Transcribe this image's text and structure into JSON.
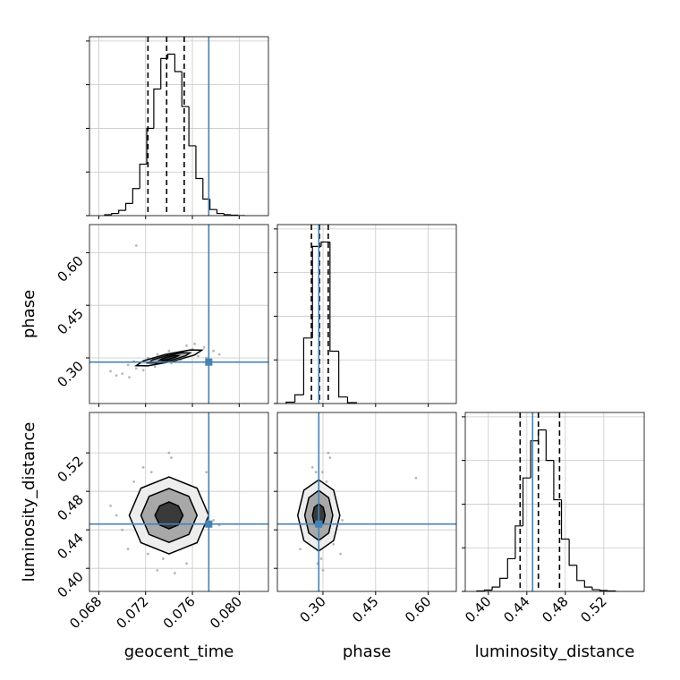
{
  "chart_data": {
    "type": "corner",
    "truth_color": "#4682b4",
    "grid": true,
    "parameters": [
      {
        "name": "geocent_time",
        "xlim": [
          0.0672,
          0.0825
        ],
        "xticks": [
          0.068,
          0.072,
          0.076,
          {
            "value": 0.08,
            "label": "0.080"
          }
        ],
        "truth": 0.0774,
        "quantiles": [
          0.0722,
          0.0738,
          0.0753
        ],
        "hist": {
          "bins": [
            0.0685,
            0.0691,
            0.0697,
            0.0703,
            0.0709,
            0.0715,
            0.0721,
            0.0727,
            0.0733,
            0.0739,
            0.0745,
            0.0751,
            0.0757,
            0.0763,
            0.0769,
            0.0775,
            0.0781,
            0.0787,
            0.0793,
            0.0799,
            0.0805
          ],
          "counts": [
            2,
            5,
            12,
            28,
            62,
            118,
            200,
            290,
            360,
            370,
            330,
            250,
            160,
            85,
            38,
            14,
            5,
            2,
            1,
            0
          ],
          "ylim": [
            0,
            410
          ],
          "yticks": [
            0,
            100,
            200,
            300,
            400
          ]
        }
      },
      {
        "name": "phase",
        "xlim": [
          0.17,
          0.68
        ],
        "ylim": [
          0.17,
          0.68
        ],
        "xticks": [
          {
            "value": 0.3,
            "label": "0.30"
          },
          0.45,
          {
            "value": 0.6,
            "label": "0.60"
          }
        ],
        "yticks": [
          {
            "value": 0.3,
            "label": "0.30"
          },
          0.45,
          {
            "value": 0.6,
            "label": "0.60"
          }
        ],
        "truth": 0.288,
        "quantiles": [
          0.267,
          0.29,
          0.315
        ],
        "hist": {
          "bins": [
            0.195,
            0.22,
            0.245,
            0.27,
            0.295,
            0.32,
            0.345,
            0.37,
            0.395
          ],
          "counts": [
            3,
            20,
            150,
            360,
            370,
            120,
            15,
            2
          ],
          "ylim": [
            0,
            410
          ],
          "yticks": [
            0,
            100,
            200,
            300,
            400
          ]
        }
      },
      {
        "name": "luminosity_distance",
        "xlim": [
          0.376,
          0.562
        ],
        "ylim": [
          0.376,
          0.562
        ],
        "xticks": [
          {
            "value": 0.4,
            "label": "0.40"
          },
          0.44,
          0.48,
          0.52
        ],
        "yticks": [
          {
            "value": 0.4,
            "label": "0.40"
          },
          0.44,
          0.48,
          0.52
        ],
        "truth": 0.446,
        "quantiles": [
          0.433,
          0.452,
          0.474
        ],
        "hist": {
          "bins": [
            0.388,
            0.396,
            0.404,
            0.412,
            0.42,
            0.428,
            0.436,
            0.444,
            0.452,
            0.46,
            0.468,
            0.476,
            0.484,
            0.492,
            0.5,
            0.508,
            0.516,
            0.524,
            0.532
          ],
          "counts": [
            1,
            3,
            10,
            30,
            75,
            150,
            260,
            345,
            370,
            300,
            210,
            120,
            60,
            25,
            10,
            4,
            2,
            1
          ],
          "ylim": [
            0,
            410
          ],
          "yticks": [
            0,
            100,
            200,
            300,
            400
          ]
        }
      }
    ],
    "pairs": [
      {
        "x_param": 0,
        "y_param": 1,
        "points": {
          "x": [
            0.07,
            0.0712,
            0.0725,
            0.0735,
            0.0748,
            0.076,
            0.077,
            0.0778,
            0.0705,
            0.0718,
            0.073,
            0.0742,
            0.0755,
            0.0765,
            0.0695,
            0.0783,
            0.0728,
            0.075,
            0.071,
            0.0762,
            0.074,
            0.0722,
            0.069,
            0.0772,
            0.0706,
            0.0712
          ],
          "y": [
            0.255,
            0.27,
            0.29,
            0.3,
            0.315,
            0.325,
            0.33,
            0.32,
            0.28,
            0.265,
            0.31,
            0.285,
            0.335,
            0.305,
            0.25,
            0.31,
            0.275,
            0.295,
            0.29,
            0.34,
            0.32,
            0.3,
            0.262,
            0.3,
            0.245,
            0.62
          ]
        },
        "contours": [
          {
            "x": [
              0.0768,
              0.0762,
              0.0743,
              0.0722,
              0.0712,
              0.0718,
              0.0737,
              0.0758
            ],
            "y": [
              0.322,
              0.3085,
              0.29,
              0.2774,
              0.278,
              0.2915,
              0.31,
              0.3226
            ]
          },
          {
            "x": [
              0.0758,
              0.0754,
              0.0742,
              0.0729,
              0.0722,
              0.0726,
              0.0738,
              0.0751
            ],
            "y": [
              0.3143,
              0.3055,
              0.2935,
              0.2853,
              0.2857,
              0.2945,
              0.3065,
              0.3147
            ]
          },
          {
            "x": [
              0.0748,
              0.0746,
              0.0741,
              0.0735,
              0.0732,
              0.0734,
              0.0739,
              0.0745
            ],
            "y": [
              0.3066,
              0.3026,
              0.297,
              0.2932,
              0.2934,
              0.2974,
              0.303,
              0.3068
            ]
          }
        ]
      },
      {
        "x_param": 0,
        "y_param": 2,
        "points": {
          "x": [
            0.07,
            0.0712,
            0.0725,
            0.0735,
            0.0748,
            0.076,
            0.077,
            0.0778,
            0.0705,
            0.0718,
            0.073,
            0.0742,
            0.0755,
            0.0765,
            0.0695,
            0.0783,
            0.0728,
            0.075,
            0.071,
            0.0762,
            0.074,
            0.0722,
            0.069,
            0.0772,
            0.0745
          ],
          "y": [
            0.44,
            0.47,
            0.5,
            0.41,
            0.49,
            0.43,
            0.46,
            0.45,
            0.42,
            0.505,
            0.398,
            0.515,
            0.405,
            0.48,
            0.455,
            0.445,
            0.475,
            0.425,
            0.49,
            0.47,
            0.52,
            0.415,
            0.465,
            0.5,
            0.395
          ]
        },
        "contours": [
          {
            "x": [
              0.0774,
              0.0764,
              0.074,
              0.0716,
              0.0706,
              0.0716,
              0.074,
              0.0764
            ],
            "y": [
              0.455,
              0.4833,
              0.495,
              0.4833,
              0.455,
              0.4267,
              0.415,
              0.4267
            ]
          },
          {
            "x": [
              0.0764,
              0.0757,
              0.074,
              0.0723,
              0.0716,
              0.0723,
              0.074,
              0.0757
            ],
            "y": [
              0.455,
              0.4748,
              0.483,
              0.4748,
              0.455,
              0.4352,
              0.427,
              0.4352
            ]
          },
          {
            "x": [
              0.0752,
              0.0748,
              0.074,
              0.0732,
              0.0728,
              0.0732,
              0.074,
              0.0748
            ],
            "y": [
              0.455,
              0.4649,
              0.469,
              0.4649,
              0.455,
              0.4451,
              0.441,
              0.4451
            ]
          }
        ]
      },
      {
        "x_param": 1,
        "y_param": 2,
        "points": {
          "x": [
            0.25,
            0.265,
            0.28,
            0.295,
            0.31,
            0.325,
            0.34,
            0.355,
            0.235,
            0.27,
            0.3,
            0.32,
            0.285,
            0.26,
            0.345,
            0.275,
            0.305,
            0.33,
            0.29,
            0.245,
            0.315,
            0.35,
            0.255,
            0.298,
            0.565
          ],
          "y": [
            0.44,
            0.47,
            0.5,
            0.41,
            0.49,
            0.43,
            0.46,
            0.45,
            0.42,
            0.505,
            0.398,
            0.515,
            0.405,
            0.48,
            0.455,
            0.445,
            0.475,
            0.425,
            0.49,
            0.47,
            0.52,
            0.415,
            0.465,
            0.5,
            0.494
          ]
        },
        "contours": [
          {
            "x": [
              0.348,
              0.3304,
              0.288,
              0.2456,
              0.228,
              0.2456,
              0.288,
              0.3304
            ],
            "y": [
              0.455,
              0.4812,
              0.492,
              0.4812,
              0.455,
              0.4288,
              0.418,
              0.4288
            ]
          },
          {
            "x": [
              0.328,
              0.3163,
              0.288,
              0.2597,
              0.248,
              0.2597,
              0.288,
              0.3163
            ],
            "y": [
              0.455,
              0.4734,
              0.481,
              0.4734,
              0.455,
              0.4366,
              0.429,
              0.4366
            ]
          },
          {
            "x": [
              0.306,
              0.3007,
              0.288,
              0.2753,
              0.27,
              0.2753,
              0.288,
              0.3007
            ],
            "y": [
              0.455,
              0.4635,
              0.467,
              0.4635,
              0.455,
              0.4465,
              0.443,
              0.4465
            ]
          }
        ]
      }
    ]
  }
}
